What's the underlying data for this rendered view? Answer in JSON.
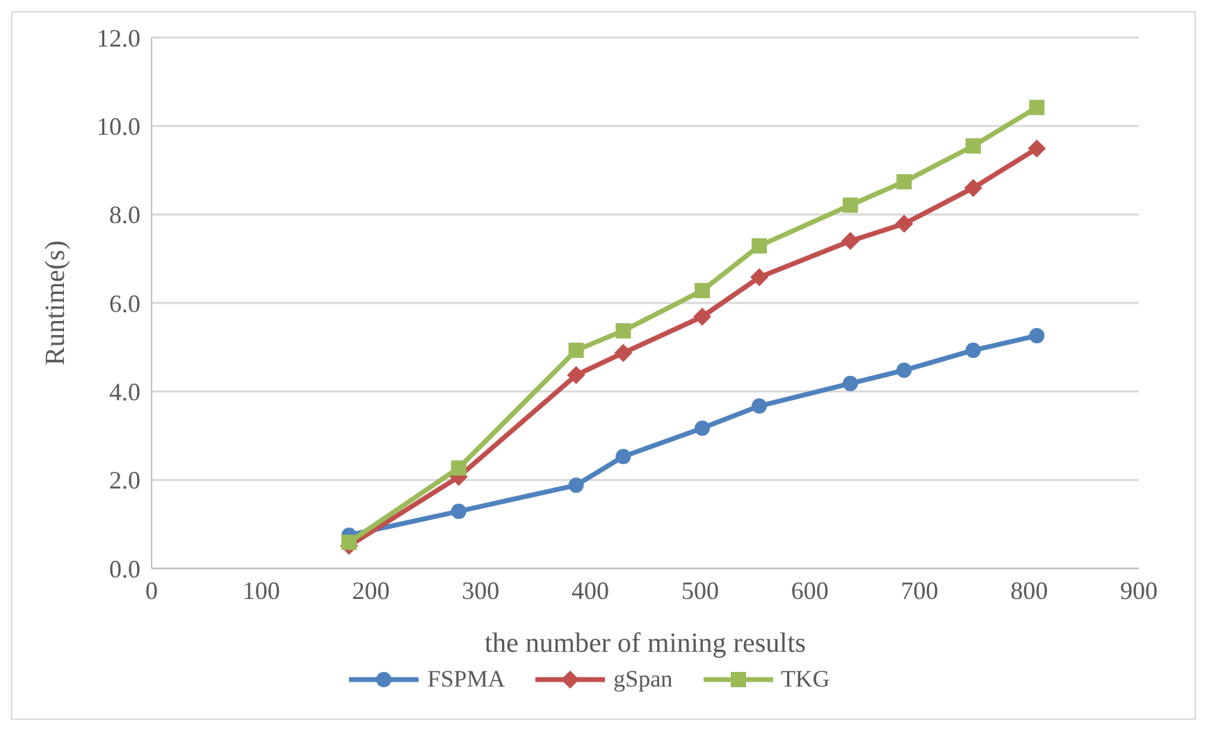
{
  "chart_data": {
    "type": "line",
    "xlabel": "the number of mining results",
    "ylabel": "Runtime(s)",
    "x": [
      180,
      280,
      387,
      430,
      502,
      554,
      637,
      686,
      749,
      807
    ],
    "series": [
      {
        "name": "FSPMA",
        "color": "#4f81bd",
        "marker": "circle",
        "values": [
          0.75,
          1.29,
          1.88,
          2.53,
          3.17,
          3.67,
          4.18,
          4.48,
          4.93,
          5.26
        ]
      },
      {
        "name": "gSpan",
        "color": "#c0504d",
        "marker": "diamond",
        "values": [
          0.51,
          2.07,
          4.37,
          4.87,
          5.69,
          6.58,
          7.4,
          7.79,
          8.6,
          9.49
        ]
      },
      {
        "name": "TKG",
        "color": "#9bbb59",
        "marker": "square",
        "values": [
          0.59,
          2.27,
          4.93,
          5.37,
          6.28,
          7.29,
          8.21,
          8.74,
          9.55,
          10.42
        ]
      }
    ],
    "xlim": [
      0,
      900
    ],
    "xticks": [
      0,
      100,
      200,
      300,
      400,
      500,
      600,
      700,
      800,
      900
    ],
    "ylim": [
      0,
      12
    ],
    "yticks": [
      {
        "value": 0,
        "label": "0.0"
      },
      {
        "value": 2,
        "label": "2.0"
      },
      {
        "value": 4,
        "label": "4.0"
      },
      {
        "value": 6,
        "label": "6.0"
      },
      {
        "value": 8,
        "label": "8.0"
      },
      {
        "value": 10,
        "label": "10.0"
      },
      {
        "value": 12,
        "label": "12.0"
      }
    ],
    "grid": "y",
    "legend": "bottom",
    "line_style": "solid"
  }
}
